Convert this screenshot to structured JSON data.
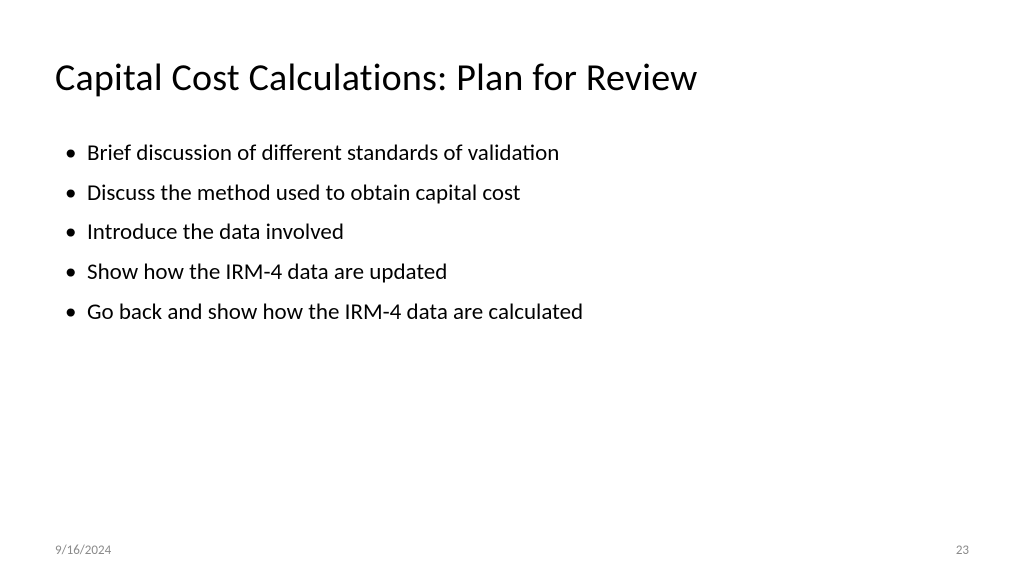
{
  "slide": {
    "title": "Capital Cost Calculations: Plan for Review",
    "bullets": [
      "Brief discussion of different standards of validation",
      "Discuss the method used to obtain capital cost",
      "Introduce the data involved",
      "Show how the IRM-4 data are updated",
      "Go back and show how the IRM-4 data are calculated"
    ],
    "footer": {
      "date": "9/16/2024",
      "page_number": "23"
    },
    "style": {
      "background_color": "#ffffff",
      "title_fontsize": 38,
      "title_color": "#000000",
      "bullet_fontsize": 23,
      "bullet_color": "#000000",
      "footer_fontsize": 13,
      "footer_color": "#8a8a8a"
    }
  }
}
